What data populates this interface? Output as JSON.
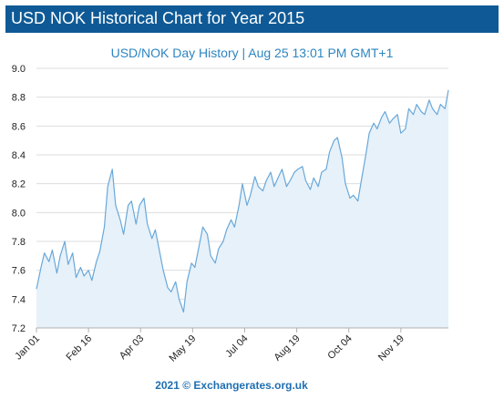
{
  "header": {
    "title": "USD NOK Historical Chart for Year 2015"
  },
  "footer": {
    "credit": "2021 © Exchangerates.org.uk"
  },
  "colors": {
    "banner": "#0f5a96",
    "line": "#6aa8d8",
    "area": "#e6f1fa",
    "subtitle": "#2e86c1",
    "grid": "#dddddd"
  },
  "chart_data": {
    "type": "area",
    "title": "USD/NOK  Day History | Aug 25 13:01 PM GMT+1",
    "xlabel": "",
    "ylabel": "",
    "ylim": [
      7.2,
      9.0
    ],
    "yticks": [
      "9.0",
      "8.8",
      "8.6",
      "8.4",
      "8.2",
      "8.0",
      "7.8",
      "7.6",
      "7.4",
      "7.2"
    ],
    "xticks": [
      "Jan 01",
      "Feb 16",
      "Apr 03",
      "May 19",
      "Jul 04",
      "Aug 19",
      "Oct 04",
      "Nov 19"
    ],
    "grid": true,
    "series": [
      {
        "x": [
          "2015-01-01",
          "2015-01-05",
          "2015-01-08",
          "2015-01-12",
          "2015-01-15",
          "2015-01-19",
          "2015-01-22",
          "2015-01-26",
          "2015-01-29",
          "2015-02-02",
          "2015-02-05",
          "2015-02-09",
          "2015-02-12",
          "2015-02-16",
          "2015-02-19",
          "2015-02-23",
          "2015-02-26",
          "2015-03-02",
          "2015-03-05",
          "2015-03-09",
          "2015-03-12",
          "2015-03-16",
          "2015-03-19",
          "2015-03-23",
          "2015-03-26",
          "2015-03-30",
          "2015-04-02",
          "2015-04-06",
          "2015-04-09",
          "2015-04-13",
          "2015-04-16",
          "2015-04-20",
          "2015-04-23",
          "2015-04-27",
          "2015-04-30",
          "2015-05-04",
          "2015-05-07",
          "2015-05-11",
          "2015-05-14",
          "2015-05-18",
          "2015-05-21",
          "2015-05-25",
          "2015-05-28",
          "2015-06-01",
          "2015-06-04",
          "2015-06-08",
          "2015-06-11",
          "2015-06-15",
          "2015-06-18",
          "2015-06-22",
          "2015-06-25",
          "2015-06-29",
          "2015-07-02",
          "2015-07-06",
          "2015-07-09",
          "2015-07-13",
          "2015-07-16",
          "2015-07-20",
          "2015-07-23",
          "2015-07-27",
          "2015-07-30",
          "2015-08-03",
          "2015-08-06",
          "2015-08-10",
          "2015-08-13",
          "2015-08-17",
          "2015-08-20",
          "2015-08-24",
          "2015-08-27",
          "2015-08-31",
          "2015-09-03",
          "2015-09-07",
          "2015-09-10",
          "2015-09-14",
          "2015-09-17",
          "2015-09-21",
          "2015-09-24",
          "2015-09-28",
          "2015-10-01",
          "2015-10-05",
          "2015-10-08",
          "2015-10-12",
          "2015-10-15",
          "2015-10-19",
          "2015-10-22",
          "2015-10-26",
          "2015-10-29",
          "2015-11-02",
          "2015-11-05",
          "2015-11-09",
          "2015-11-12",
          "2015-11-16",
          "2015-11-19",
          "2015-11-23",
          "2015-11-26",
          "2015-11-30",
          "2015-12-03",
          "2015-12-07",
          "2015-12-10",
          "2015-12-14",
          "2015-12-17",
          "2015-12-21",
          "2015-12-24",
          "2015-12-28",
          "2015-12-31"
        ],
        "values": [
          7.47,
          7.62,
          7.72,
          7.66,
          7.74,
          7.58,
          7.7,
          7.8,
          7.64,
          7.72,
          7.55,
          7.62,
          7.56,
          7.6,
          7.53,
          7.66,
          7.73,
          7.9,
          8.18,
          8.3,
          8.05,
          7.95,
          7.85,
          8.05,
          8.08,
          7.92,
          8.05,
          8.1,
          7.92,
          7.82,
          7.88,
          7.72,
          7.6,
          7.48,
          7.45,
          7.52,
          7.4,
          7.31,
          7.52,
          7.65,
          7.62,
          7.78,
          7.9,
          7.85,
          7.7,
          7.65,
          7.75,
          7.8,
          7.88,
          7.95,
          7.9,
          8.05,
          8.2,
          8.05,
          8.12,
          8.25,
          8.18,
          8.15,
          8.22,
          8.28,
          8.18,
          8.25,
          8.3,
          8.18,
          8.22,
          8.28,
          8.3,
          8.32,
          8.22,
          8.16,
          8.24,
          8.18,
          8.28,
          8.3,
          8.42,
          8.5,
          8.52,
          8.38,
          8.2,
          8.1,
          8.12,
          8.08,
          8.22,
          8.4,
          8.55,
          8.62,
          8.58,
          8.66,
          8.7,
          8.62,
          8.65,
          8.68,
          8.55,
          8.58,
          8.72,
          8.68,
          8.75,
          8.7,
          8.68,
          8.78,
          8.72,
          8.68,
          8.75,
          8.72,
          8.85
        ]
      }
    ]
  }
}
